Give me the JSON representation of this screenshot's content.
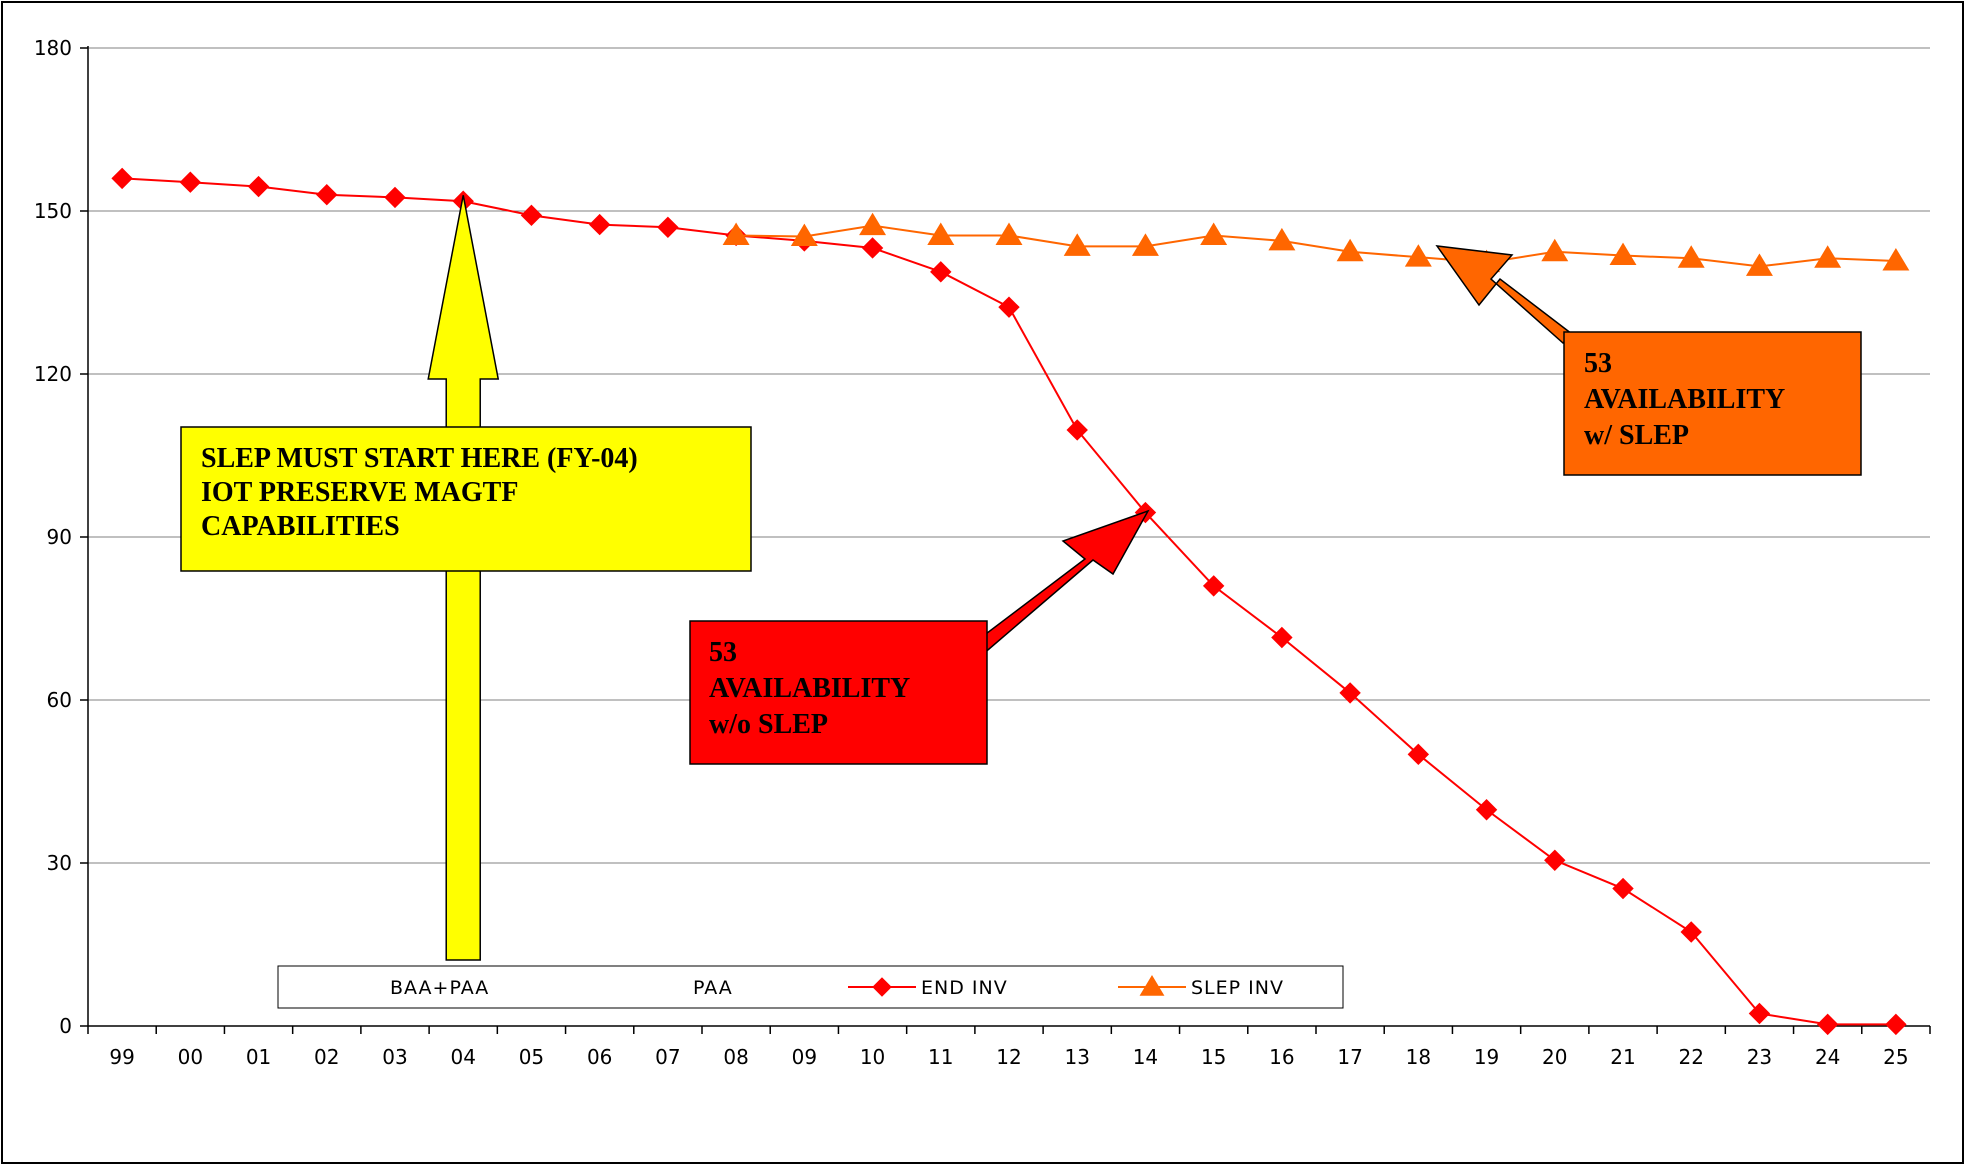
{
  "chart_data": {
    "type": "line",
    "title": "",
    "xlabel": "",
    "ylabel": "",
    "categories": [
      "99",
      "00",
      "01",
      "02",
      "03",
      "04",
      "05",
      "06",
      "07",
      "08",
      "09",
      "10",
      "11",
      "12",
      "13",
      "14",
      "15",
      "16",
      "17",
      "18",
      "19",
      "20",
      "21",
      "22",
      "23",
      "24",
      "25"
    ],
    "ylim": [
      0,
      180
    ],
    "yticks": [
      0,
      30,
      60,
      90,
      120,
      150,
      180
    ],
    "grid": true,
    "legend_position": "bottom",
    "legend": [
      {
        "label": "BAA+PAA",
        "marker": "none"
      },
      {
        "label": "PAA",
        "marker": "none"
      },
      {
        "label": "END INV",
        "marker": "diamond",
        "color": "#FF0000"
      },
      {
        "label": "SLEP INV",
        "marker": "triangle",
        "color": "#FF6600"
      }
    ],
    "series": [
      {
        "name": "END INV",
        "color": "#FF0000",
        "marker": "diamond",
        "values": [
          156,
          155.3,
          154.5,
          153,
          152.5,
          151.8,
          149.2,
          147.5,
          147,
          145.5,
          144.5,
          143.2,
          138.8,
          132.3,
          109.7,
          94.5,
          81,
          71.5,
          61.3,
          50,
          39.8,
          30.5,
          25.3,
          17.3,
          2.3,
          0.3,
          0.3
        ]
      },
      {
        "name": "SLEP INV",
        "color": "#FF6600",
        "marker": "triangle",
        "values": [
          null,
          null,
          null,
          null,
          null,
          null,
          null,
          null,
          null,
          145.5,
          145.3,
          147.3,
          145.5,
          145.5,
          143.5,
          143.5,
          145.5,
          144.5,
          142.5,
          141.5,
          140.5,
          142.5,
          141.8,
          141.3,
          139.8,
          141.3,
          140.8
        ]
      }
    ],
    "annotations": [
      {
        "id": "slep-start",
        "lines": [
          "SLEP MUST START HERE (FY-04)",
          "IOT PRESERVE MAGTF",
          "CAPABILITIES"
        ],
        "color": "#FFFF00"
      },
      {
        "id": "availability-without-slep",
        "lines": [
          "53",
          "AVAILABILITY",
          "w/o SLEP"
        ],
        "color": "#FF0000"
      },
      {
        "id": "availability-with-slep",
        "lines": [
          "53",
          "AVAILABILITY",
          "w/ SLEP"
        ],
        "color": "#FF6600"
      }
    ]
  }
}
